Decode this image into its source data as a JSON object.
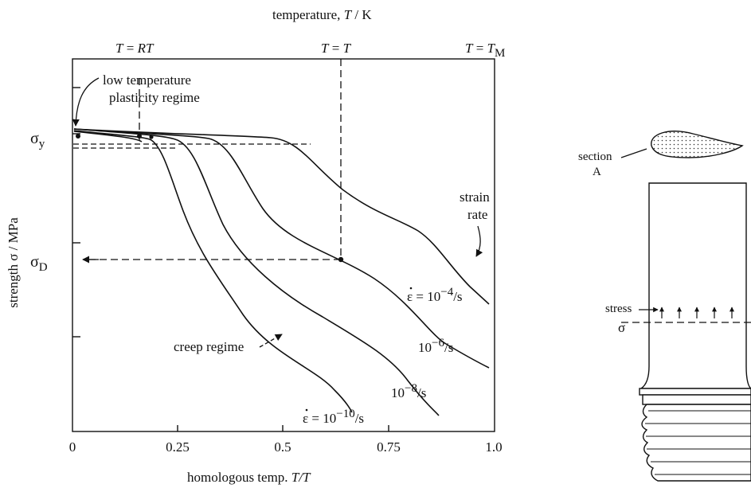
{
  "top_axis": {
    "title_prefix": "temperature, ",
    "title_var": "T",
    "title_unit": " / K",
    "markers": [
      {
        "lhs": "T",
        "eq": " = ",
        "rhs": "RT",
        "sub": ""
      },
      {
        "lhs": "T",
        "eq": " = ",
        "rhs": "T",
        "sub": ""
      },
      {
        "lhs": "T",
        "eq": " = ",
        "rhs": "T",
        "sub": "M"
      }
    ]
  },
  "y_axis": {
    "title": "strength σ / MPa",
    "sigma_y": {
      "base": "σ",
      "sub": "y"
    },
    "sigma_D": {
      "base": "σ",
      "sub": "D"
    }
  },
  "x_axis": {
    "title_prefix": "homologous temp. ",
    "title_var": "T/T",
    "ticks": [
      "0",
      "0.25",
      "0.5",
      "0.75",
      "1.0"
    ]
  },
  "annotations": {
    "low_temp_line1": "low temperature",
    "low_temp_line2": "plasticity regime",
    "creep": "creep regime",
    "strain_rate_line1": "strain",
    "strain_rate_line2": "rate"
  },
  "curve_labels": [
    {
      "prefix": "ε = 10",
      "exp": "−4",
      "suffix": "/s"
    },
    {
      "prefix": "10",
      "exp": "−6",
      "suffix": "/s"
    },
    {
      "prefix": "10",
      "exp": "−8",
      "suffix": "/s"
    },
    {
      "prefix": "ε = 10",
      "exp": "−10",
      "suffix": "/s"
    }
  ],
  "blade": {
    "section_line1": "section",
    "section_line2": "A",
    "stress_line1": "stress",
    "stress_line2": "σ"
  }
}
